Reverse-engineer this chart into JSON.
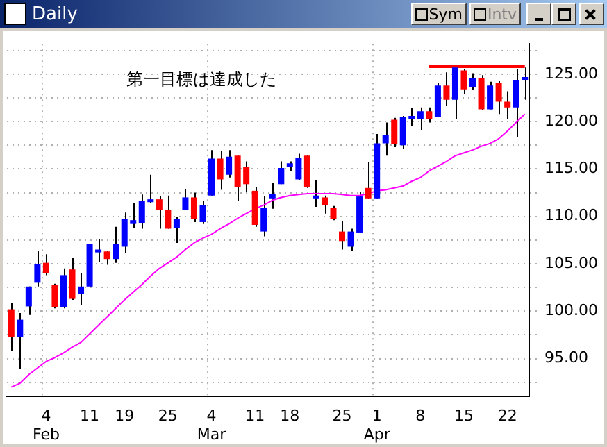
{
  "chart_data": {
    "type": "candlestick",
    "title": "Daily",
    "annotations": [
      "第一目標は達成した",
      "Sym",
      "Intv"
    ],
    "categories": [
      null,
      null,
      null,
      null,
      "4\nFeb",
      null,
      null,
      null,
      null,
      "11",
      null,
      null,
      null,
      "19",
      null,
      null,
      null,
      null,
      "25",
      null,
      null,
      null,
      null,
      "4\nMar",
      null,
      null,
      null,
      null,
      "11",
      null,
      null,
      null,
      "18",
      null,
      null,
      null,
      null,
      null,
      "25",
      null,
      null,
      null,
      "1\nApr",
      null,
      null,
      null,
      null,
      "8",
      null,
      null,
      null,
      null,
      "15",
      null,
      null,
      null,
      null,
      "22",
      null,
      null
    ],
    "ohlc": [
      [
        100.2,
        100.9,
        95.8,
        97.3
      ],
      [
        97.3,
        99.8,
        93.9,
        99.1
      ],
      [
        100.5,
        102.6,
        99.6,
        102.6
      ],
      [
        103.0,
        106.4,
        102.6,
        105.0
      ],
      [
        105.1,
        106.0,
        103.8,
        104.0
      ],
      [
        102.8,
        102.9,
        100.3,
        100.4
      ],
      [
        100.4,
        104.5,
        100.3,
        103.8
      ],
      [
        104.4,
        105.6,
        101.2,
        101.3
      ],
      [
        101.8,
        104.0,
        100.6,
        102.6
      ],
      [
        102.6,
        107.1,
        102.6,
        107.1
      ],
      [
        106.2,
        107.6,
        105.2,
        106.5
      ],
      [
        106.3,
        106.4,
        104.9,
        105.5
      ],
      [
        105.5,
        108.9,
        105.1,
        107.1
      ],
      [
        106.8,
        110.4,
        106.1,
        109.7
      ],
      [
        109.2,
        111.4,
        108.8,
        109.6
      ],
      [
        109.3,
        112.3,
        108.7,
        111.6
      ],
      [
        111.5,
        114.4,
        111.4,
        111.8
      ],
      [
        111.8,
        112.1,
        108.7,
        110.7
      ],
      [
        110.7,
        112.2,
        108.7,
        108.7
      ],
      [
        108.8,
        109.9,
        107.2,
        109.7
      ],
      [
        110.7,
        112.9,
        110.7,
        112.0
      ],
      [
        112.0,
        112.5,
        109.4,
        109.7
      ],
      [
        109.4,
        111.6,
        109.2,
        111.2
      ],
      [
        112.2,
        117.0,
        112.2,
        116.1
      ],
      [
        116.1,
        116.9,
        112.8,
        113.9
      ],
      [
        114.4,
        117.0,
        114.1,
        116.3
      ],
      [
        116.4,
        116.4,
        111.6,
        113.1
      ],
      [
        115.2,
        115.8,
        112.6,
        113.4
      ],
      [
        112.7,
        113.1,
        108.9,
        109.1
      ],
      [
        108.4,
        112.1,
        107.9,
        110.9
      ],
      [
        111.9,
        113.5,
        110.8,
        112.4
      ],
      [
        113.4,
        115.8,
        113.4,
        115.1
      ],
      [
        115.2,
        115.8,
        114.8,
        115.6
      ],
      [
        113.9,
        116.6,
        113.8,
        116.2
      ],
      [
        116.4,
        116.5,
        113.0,
        113.1
      ],
      [
        111.9,
        113.8,
        111.0,
        112.2
      ],
      [
        112.0,
        112.2,
        110.3,
        111.2
      ],
      [
        110.9,
        111.1,
        109.6,
        109.7
      ],
      [
        108.4,
        109.5,
        106.5,
        107.4
      ],
      [
        106.8,
        108.7,
        106.4,
        108.4
      ],
      [
        108.3,
        112.6,
        108.3,
        112.1
      ],
      [
        113.0,
        115.7,
        111.9,
        111.9
      ],
      [
        111.9,
        118.7,
        111.9,
        117.7
      ],
      [
        117.7,
        119.9,
        116.4,
        118.6
      ],
      [
        120.2,
        120.4,
        117.3,
        117.6
      ],
      [
        117.5,
        120.6,
        117.1,
        120.5
      ],
      [
        120.3,
        121.4,
        119.5,
        120.6
      ],
      [
        120.3,
        121.5,
        119.1,
        121.1
      ],
      [
        121.1,
        121.5,
        119.9,
        120.3
      ],
      [
        120.5,
        124.1,
        120.5,
        123.8
      ],
      [
        123.8,
        125.2,
        121.7,
        122.3
      ],
      [
        122.3,
        125.9,
        120.3,
        125.7
      ],
      [
        125.4,
        125.5,
        122.9,
        123.4
      ],
      [
        123.6,
        125.1,
        123.3,
        124.6
      ],
      [
        124.6,
        124.9,
        121.2,
        121.3
      ],
      [
        121.3,
        124.2,
        121.3,
        123.8
      ],
      [
        124.1,
        124.3,
        120.8,
        122.1
      ],
      [
        122.1,
        123.2,
        120.3,
        121.5
      ],
      [
        121.5,
        125.5,
        118.4,
        124.4
      ],
      [
        124.4,
        125.7,
        122.3,
        124.7
      ]
    ],
    "colors": [
      "#ff0000",
      "#0000ff",
      "#0000ff",
      "#0000ff",
      "#ff0000",
      "#ff0000",
      "#0000ff",
      "#ff0000",
      "#0000ff",
      "#0000ff",
      "#0000ff",
      "#ff0000",
      "#0000ff",
      "#0000ff",
      "#0000ff",
      "#0000ff",
      "#0000ff",
      "#ff0000",
      "#ff0000",
      "#0000ff",
      "#0000ff",
      "#ff0000",
      "#0000ff",
      "#0000ff",
      "#ff0000",
      "#0000ff",
      "#ff0000",
      "#ff0000",
      "#ff0000",
      "#0000ff",
      "#0000ff",
      "#0000ff",
      "#0000ff",
      "#0000ff",
      "#ff0000",
      "#0000ff",
      "#ff0000",
      "#ff0000",
      "#ff0000",
      "#0000ff",
      "#0000ff",
      "#ff0000",
      "#0000ff",
      "#0000ff",
      "#ff0000",
      "#0000ff",
      "#0000ff",
      "#0000ff",
      "#ff0000",
      "#0000ff",
      "#ff0000",
      "#0000ff",
      "#ff0000",
      "#0000ff",
      "#ff0000",
      "#0000ff",
      "#ff0000",
      "#ff0000",
      "#0000ff",
      "#0000ff"
    ],
    "series": [
      {
        "type": "line",
        "color": "#ff00ff",
        "values": [
          92.0,
          92.4,
          93.3,
          94.0,
          94.7,
          95.1,
          95.6,
          96.2,
          96.7,
          97.6,
          98.5,
          99.4,
          100.3,
          101.2,
          102.0,
          102.8,
          103.7,
          104.5,
          105.1,
          105.7,
          106.5,
          107.2,
          107.7,
          108.1,
          108.7,
          109.2,
          109.8,
          110.3,
          110.8,
          111.2,
          111.7,
          112.0,
          112.2,
          112.3,
          112.4,
          112.4,
          112.4,
          112.4,
          112.3,
          112.2,
          112.2,
          112.4,
          112.7,
          112.8,
          113.0,
          113.2,
          113.7,
          114.1,
          114.8,
          115.3,
          115.8,
          116.4,
          116.7,
          117.0,
          117.4,
          117.7,
          118.2,
          119.0,
          119.9,
          120.8
        ]
      },
      {
        "type": "line",
        "color": "#ff0000",
        "values": [
          null,
          null,
          null,
          null,
          null,
          null,
          null,
          null,
          null,
          null,
          null,
          null,
          null,
          null,
          null,
          null,
          null,
          null,
          null,
          null,
          null,
          null,
          null,
          null,
          null,
          null,
          null,
          null,
          null,
          null,
          null,
          null,
          null,
          null,
          null,
          null,
          null,
          null,
          null,
          null,
          null,
          null,
          null,
          null,
          null,
          null,
          null,
          null,
          125.8,
          125.8,
          125.8,
          125.8,
          125.8,
          125.8,
          125.8,
          125.8,
          125.8,
          125.8,
          125.8,
          125.8
        ]
      }
    ],
    "ylim": [
      91,
      128.2
    ],
    "yticks": [
      {
        "value": 92.5,
        "label": null
      },
      {
        "value": 95,
        "label": "95.00"
      },
      {
        "value": 97.5,
        "label": null
      },
      {
        "value": 100,
        "label": "100.00"
      },
      {
        "value": 102.5,
        "label": null
      },
      {
        "value": 105,
        "label": "105.00"
      },
      {
        "value": 107.5,
        "label": null
      },
      {
        "value": 110,
        "label": "110.00"
      },
      {
        "value": 112.5,
        "label": null
      },
      {
        "value": 115,
        "label": "115.00"
      },
      {
        "value": 117.5,
        "label": null
      },
      {
        "value": 120,
        "label": "120.00"
      },
      {
        "value": 122.5,
        "label": null
      },
      {
        "value": 125,
        "label": "125.00"
      },
      {
        "value": 127.5,
        "label": null
      }
    ],
    "grid": true,
    "legend": false
  }
}
